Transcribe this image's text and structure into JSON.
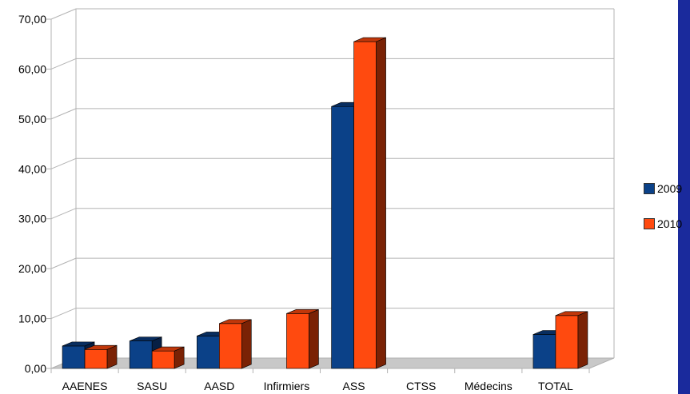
{
  "chart_data": {
    "type": "bar",
    "categories": [
      "AAENES",
      "SASU",
      "AASD",
      "Infirmiers",
      "ASS",
      "CTSS",
      "Médecins",
      "TOTAL"
    ],
    "series": [
      {
        "name": "2009",
        "color": "#0b4188",
        "side_color": "#061f44",
        "top_color": "#082d5f",
        "values": [
          4.5,
          5.5,
          6.5,
          0,
          52.5,
          0,
          0,
          6.8
        ]
      },
      {
        "name": "2010",
        "color": "#ff4a0f",
        "side_color": "#7a2205",
        "top_color": "#c0370a",
        "values": [
          3.8,
          3.5,
          9.0,
          11.0,
          65.5,
          0,
          0,
          10.6
        ]
      }
    ],
    "y_ticks": [
      "0,00",
      "10,00",
      "20,00",
      "30,00",
      "40,00",
      "50,00",
      "60,00",
      "70,00"
    ],
    "ylim": [
      0,
      70
    ],
    "grid": true,
    "legend_position": "right",
    "legend_labels": [
      "2009",
      "2010"
    ],
    "title": "",
    "xlabel": "",
    "ylabel": ""
  }
}
